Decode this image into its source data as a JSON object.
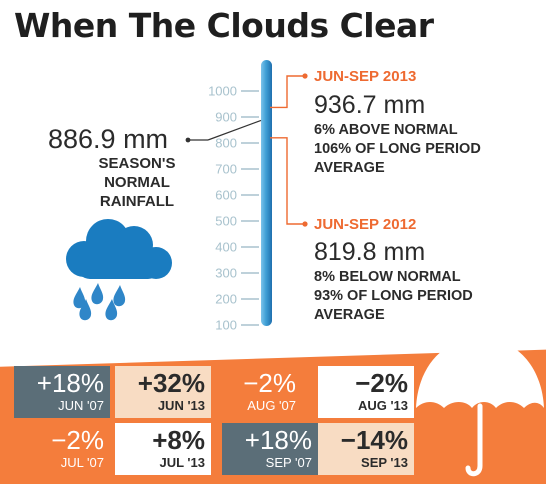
{
  "title": "When The Clouds Clear",
  "chart_data": {
    "type": "gauge",
    "title": "When The Clouds Clear",
    "unit": "mm",
    "ticks": [
      1000,
      900,
      800,
      700,
      600,
      500,
      400,
      300,
      200,
      100
    ],
    "scale_range": [
      100,
      1000
    ],
    "normal": {
      "value": 886.9,
      "value_text": "886.9 mm",
      "label_lines": [
        "SEASON'S",
        "NORMAL",
        "RAINFALL"
      ]
    },
    "periods": [
      {
        "title": "JUN-SEP 2013",
        "value": 936.7,
        "value_text": "936.7 mm",
        "lines": [
          "6%  ABOVE NORMAL",
          "106% OF LONG PERIOD",
          "AVERAGE"
        ]
      },
      {
        "title": "JUN-SEP 2012",
        "value": 819.8,
        "value_text": "819.8 mm",
        "lines": [
          "8%  BELOW NORMAL",
          "93% OF LONG PERIOD",
          "AVERAGE"
        ]
      }
    ]
  },
  "monthly_changes": [
    {
      "pct": "+18%",
      "label": "JUN '07",
      "value": 18,
      "style": "dark"
    },
    {
      "pct": "+32%",
      "label": "JUN '13",
      "value": 32,
      "style": "light"
    },
    {
      "pct": "−2%",
      "label": "AUG '07",
      "value": -2,
      "style": "orange"
    },
    {
      "pct": "−2%",
      "label": "AUG '13",
      "value": -2,
      "style": "white-b"
    },
    {
      "pct": "−2%",
      "label": "JUL '07",
      "value": -2,
      "style": "orange"
    },
    {
      "pct": "+8%",
      "label": "JUL '13",
      "value": 8,
      "style": "white-b"
    },
    {
      "pct": "+18%",
      "label": "SEP '07",
      "value": 18,
      "style": "dark"
    },
    {
      "pct": "−14%",
      "label": "SEP '13",
      "value": -14,
      "style": "light"
    }
  ],
  "colors": {
    "accent_orange": "#f47d3c",
    "period_title": "#ee6a31",
    "scale_tube": "#3f9fd5",
    "tick_gray": "#a8c2cd",
    "slate": "#5b6e78",
    "peach": "#f8dcc3",
    "cloud": "#1a7cc0"
  },
  "icons": [
    "rain-cloud-icon",
    "umbrella-icon"
  ]
}
